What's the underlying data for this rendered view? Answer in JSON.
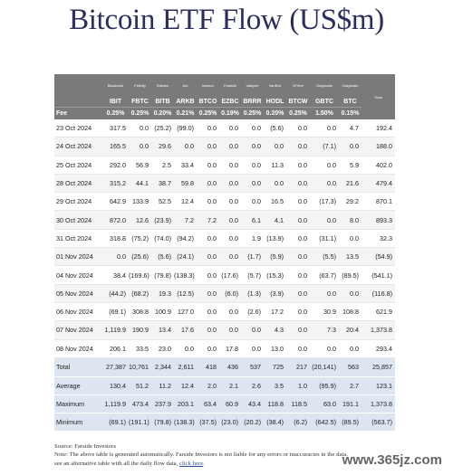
{
  "title": "Bitcoin ETF Flow (US$m)",
  "issuers": [
    "Blackrock",
    "Fidelity",
    "Bitwise",
    "Ark",
    "Invesco",
    "Franklin",
    "Valkyrie",
    "VanEck",
    "WTree",
    "Grayscale",
    "Grayscale"
  ],
  "total_label": "Total",
  "tickers": [
    "IBIT",
    "FBTC",
    "BITB",
    "ARKB",
    "BTCO",
    "EZBC",
    "BRRR",
    "HODL",
    "BTCW",
    "GBTC",
    "BTC"
  ],
  "fee_label": "Fee",
  "fees": [
    "0.25%",
    "0.25%",
    "0.20%",
    "0.21%",
    "0.25%",
    "0.19%",
    "0.25%",
    "0.20%",
    "0.25%",
    "1.50%",
    "0.15%"
  ],
  "rows": [
    {
      "date": "23 Oct 2024",
      "values": [
        "317.5",
        "0.0",
        "(25.2)",
        "(99.0)",
        "0.0",
        "0.0",
        "0.0",
        "(5.6)",
        "0.0",
        "0.0",
        "4.7"
      ],
      "total": "192.4"
    },
    {
      "date": "24 Oct 2024",
      "values": [
        "165.5",
        "0.0",
        "29.6",
        "0.0",
        "0.0",
        "0.0",
        "0.0",
        "0.0",
        "0.0",
        "(7.1)",
        "0.0"
      ],
      "total": "188.0"
    },
    {
      "date": "25 Oct 2024",
      "values": [
        "292.0",
        "56.9",
        "2.5",
        "33.4",
        "0.0",
        "0.0",
        "0.0",
        "11.3",
        "0.0",
        "0.0",
        "5.9"
      ],
      "total": "402.0"
    },
    {
      "date": "28 Oct 2024",
      "values": [
        "315.2",
        "44.1",
        "38.7",
        "59.8",
        "0.0",
        "0.0",
        "0.0",
        "0.0",
        "0.0",
        "0.0",
        "21.6"
      ],
      "total": "479.4"
    },
    {
      "date": "29 Oct 2024",
      "values": [
        "642.9",
        "133.9",
        "52.5",
        "12.4",
        "0.0",
        "0.0",
        "0.0",
        "16.5",
        "0.0",
        "(17.3)",
        "29.2"
      ],
      "total": "870.1"
    },
    {
      "date": "30 Oct 2024",
      "values": [
        "872.0",
        "12.6",
        "(23.9)",
        "7.2",
        "7.2",
        "0.0",
        "6.1",
        "4.1",
        "0.0",
        "0.0",
        "8.0"
      ],
      "total": "893.3"
    },
    {
      "date": "31 Oct 2024",
      "values": [
        "318.8",
        "(75.2)",
        "(74.0)",
        "(94.2)",
        "0.0",
        "0.0",
        "1.9",
        "(13.9)",
        "0.0",
        "(31.1)",
        "0.0"
      ],
      "total": "32.3"
    },
    {
      "date": "01 Nov 2024",
      "values": [
        "0.0",
        "(25.6)",
        "(5.6)",
        "(24.1)",
        "0.0",
        "0.0",
        "(1.7)",
        "(5.9)",
        "0.0",
        "(5.5)",
        "13.5"
      ],
      "total": "(54.9)"
    },
    {
      "date": "04 Nov 2024",
      "values": [
        "38.4",
        "(169.6)",
        "(79.8)",
        "(138.3)",
        "0.0",
        "(17.6)",
        "(5.7)",
        "(15.3)",
        "0.0",
        "(63.7)",
        "(89.5)"
      ],
      "total": "(541.1)"
    },
    {
      "date": "05 Nov 2024",
      "values": [
        "(44.2)",
        "(68.2)",
        "19.3",
        "(12.5)",
        "0.0",
        "(6.0)",
        "(1.3)",
        "(3.9)",
        "0.0",
        "0.0",
        "0.0"
      ],
      "total": "(116.8)"
    },
    {
      "date": "06 Nov 2024",
      "values": [
        "(69.1)",
        "308.8",
        "100.9",
        "127.0",
        "0.0",
        "0.0",
        "(2.6)",
        "17.2",
        "0.0",
        "30.9",
        "108.8"
      ],
      "total": "621.9"
    },
    {
      "date": "07 Nov 2024",
      "values": [
        "1,119.9",
        "190.9",
        "13.4",
        "17.6",
        "0.0",
        "0.0",
        "0.0",
        "4.3",
        "0.0",
        "7.3",
        "20.4"
      ],
      "total": "1,373.8"
    },
    {
      "date": "08 Nov 2024",
      "values": [
        "206.1",
        "33.5",
        "23.0",
        "0.0",
        "0.0",
        "17.8",
        "0.0",
        "13.0",
        "0.0",
        "0.0",
        "0.0"
      ],
      "total": "293.4"
    }
  ],
  "summary": [
    {
      "label": "Total",
      "values": [
        "27,387",
        "10,761",
        "2,344",
        "2,611",
        "418",
        "436",
        "537",
        "725",
        "217",
        "(20,141)",
        "563"
      ],
      "total": "25,857"
    },
    {
      "label": "Average",
      "values": [
        "130.4",
        "51.2",
        "11.2",
        "12.4",
        "2.0",
        "2.1",
        "2.6",
        "3.5",
        "1.0",
        "(95.9)",
        "2.7"
      ],
      "total": "123.1"
    },
    {
      "label": "Maximum",
      "values": [
        "1,119.9",
        "473.4",
        "237.9",
        "203.1",
        "63.4",
        "60.9",
        "43.4",
        "118.8",
        "118.5",
        "63.0",
        "191.1"
      ],
      "total": "1,373.8"
    },
    {
      "label": "Minimum",
      "values": [
        "(69.1)",
        "(191.1)",
        "(79.8)",
        "(138.3)",
        "(37.5)",
        "(23.0)",
        "(20.2)",
        "(38.4)",
        "(6.2)",
        "(642.5)",
        "(89.5)"
      ],
      "total": "(563.7)"
    }
  ],
  "footer": {
    "source": "Source: Farside Investors",
    "note": "Note: The above table is generated automatically. Farside Investors is not liable for any errors or inaccuracies in the data.",
    "alt_prefix": "see an alternative table with all the daily flow data,",
    "link_text": "click here",
    "alt_suffix": "."
  },
  "watermark": "www.365jz.com",
  "colors": {
    "header_bg": "#7a7a7a",
    "summary_bg": "#dde5f1",
    "negative": "#c62828",
    "title": "#2b2d5e"
  }
}
